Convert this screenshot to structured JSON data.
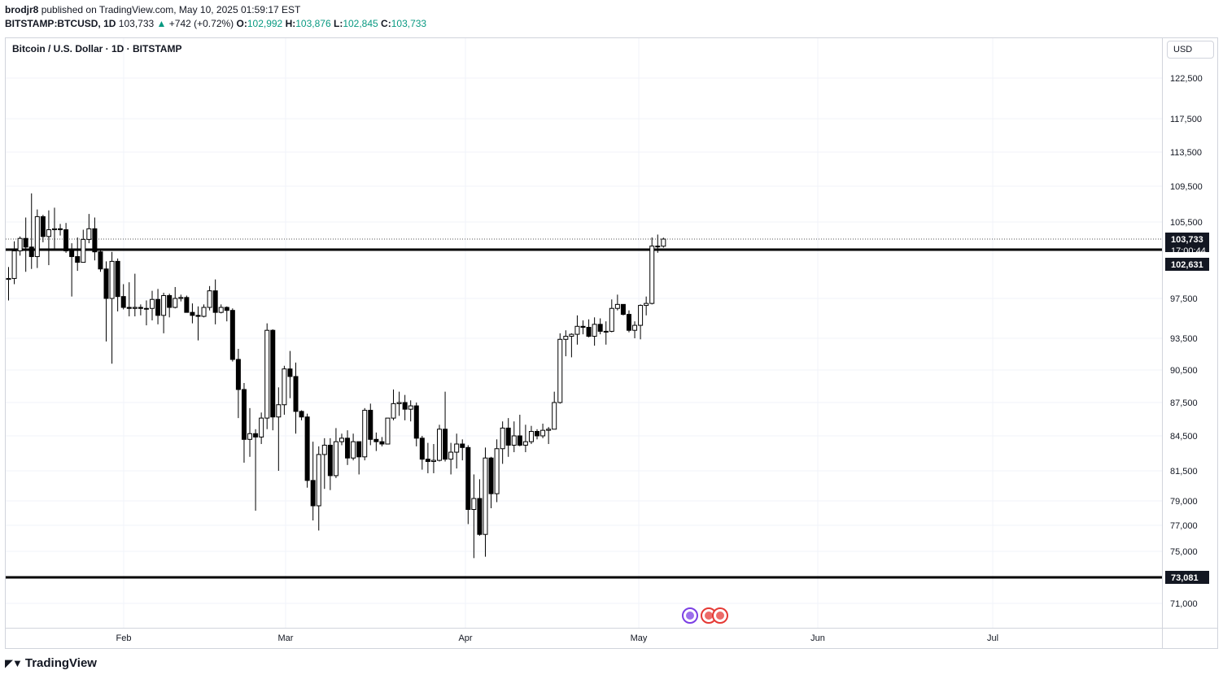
{
  "header": {
    "user": "brodjr8",
    "published_text": "published on TradingView.com, May 10, 2025 01:59:17 EST"
  },
  "ticker": {
    "symbol": "BITSTAMP:BTCUSD, 1D",
    "last": "103,733",
    "change": "+742 (+0.72%)",
    "o_label": "O:",
    "o": "102,992",
    "h_label": "H:",
    "h": "103,876",
    "l_label": "L:",
    "l": "102,845",
    "c_label": "C:",
    "c": "103,733"
  },
  "chart_title": "Bitcoin / U.S. Dollar · 1D · BITSTAMP",
  "currency_button": "USD",
  "branding": {
    "logo_text": "TradingView",
    "logo_icon": "tradingview-logo-icon"
  },
  "colors": {
    "up_candle": "#ffffff",
    "down_candle": "#000000",
    "accent_up": "#089981",
    "label_bg": "#131722"
  },
  "chart_data": {
    "type": "candlestick",
    "title": "Bitcoin / U.S. Dollar · 1D · BITSTAMP",
    "y_axis": {
      "ticks": [
        71000,
        73081,
        75000,
        77000,
        79000,
        81500,
        84500,
        87500,
        90500,
        93500,
        97500,
        102631,
        103733,
        105500,
        109500,
        113500,
        117500,
        122500
      ],
      "tick_labels": [
        "71,000",
        "75,000",
        "77,000",
        "79,000",
        "81,500",
        "84,500",
        "87,500",
        "90,500",
        "93,500",
        "97,500",
        "105,500",
        "109,500",
        "113,500",
        "117,500",
        "122,500"
      ]
    },
    "x_axis": {
      "tick_labels": [
        "Feb",
        "Mar",
        "Apr",
        "May",
        "Jun",
        "Jul"
      ]
    },
    "horizontal_lines": [
      {
        "price": 102631,
        "label": "102,631"
      },
      {
        "price": 73081,
        "label": "73,081"
      }
    ],
    "last_price": {
      "price": 103733,
      "label": "103,733",
      "countdown": "17:00:44"
    },
    "candles": [
      {
        "date": "2025-01-16",
        "o": 99500,
        "h": 100800,
        "l": 97300,
        "c": 99600
      },
      {
        "date": "2025-01-17",
        "o": 99600,
        "h": 103500,
        "l": 99000,
        "c": 102500
      },
      {
        "date": "2025-01-18",
        "o": 102500,
        "h": 104000,
        "l": 102000,
        "c": 103800
      },
      {
        "date": "2025-01-19",
        "o": 103800,
        "h": 106000,
        "l": 100300,
        "c": 102900
      },
      {
        "date": "2025-01-20",
        "o": 102900,
        "h": 108700,
        "l": 100600,
        "c": 101900
      },
      {
        "date": "2025-01-21",
        "o": 101900,
        "h": 106900,
        "l": 100700,
        "c": 106100
      },
      {
        "date": "2025-01-22",
        "o": 106100,
        "h": 106300,
        "l": 103400,
        "c": 104000
      },
      {
        "date": "2025-01-23",
        "o": 104000,
        "h": 106800,
        "l": 101000,
        "c": 104700
      },
      {
        "date": "2025-01-24",
        "o": 104700,
        "h": 107100,
        "l": 102700,
        "c": 104800
      },
      {
        "date": "2025-01-25",
        "o": 104800,
        "h": 105300,
        "l": 104100,
        "c": 104700
      },
      {
        "date": "2025-01-26",
        "o": 104700,
        "h": 105400,
        "l": 102300,
        "c": 102500
      },
      {
        "date": "2025-01-27",
        "o": 102500,
        "h": 103300,
        "l": 97700,
        "c": 101900
      },
      {
        "date": "2025-01-28",
        "o": 101900,
        "h": 103900,
        "l": 100400,
        "c": 101300
      },
      {
        "date": "2025-01-29",
        "o": 101300,
        "h": 104700,
        "l": 101300,
        "c": 103700
      },
      {
        "date": "2025-01-30",
        "o": 103700,
        "h": 106400,
        "l": 103300,
        "c": 104800
      },
      {
        "date": "2025-01-31",
        "o": 104800,
        "h": 106000,
        "l": 101500,
        "c": 102400
      },
      {
        "date": "2025-02-01",
        "o": 102400,
        "h": 102700,
        "l": 100300,
        "c": 100600
      },
      {
        "date": "2025-02-02",
        "o": 100600,
        "h": 101400,
        "l": 93200,
        "c": 97500
      },
      {
        "date": "2025-02-03",
        "o": 97500,
        "h": 102400,
        "l": 91100,
        "c": 101400
      },
      {
        "date": "2025-02-04",
        "o": 101400,
        "h": 101700,
        "l": 96200,
        "c": 97700
      },
      {
        "date": "2025-02-05",
        "o": 97700,
        "h": 99000,
        "l": 96400,
        "c": 96600
      },
      {
        "date": "2025-02-06",
        "o": 96600,
        "h": 99200,
        "l": 95700,
        "c": 96500
      },
      {
        "date": "2025-02-07",
        "o": 96500,
        "h": 100100,
        "l": 95700,
        "c": 96600
      },
      {
        "date": "2025-02-08",
        "o": 96600,
        "h": 96900,
        "l": 95800,
        "c": 96500
      },
      {
        "date": "2025-02-09",
        "o": 96500,
        "h": 97300,
        "l": 94800,
        "c": 96500
      },
      {
        "date": "2025-02-10",
        "o": 96500,
        "h": 98300,
        "l": 95300,
        "c": 97400
      },
      {
        "date": "2025-02-11",
        "o": 97400,
        "h": 98500,
        "l": 94900,
        "c": 95800
      },
      {
        "date": "2025-02-12",
        "o": 95800,
        "h": 98100,
        "l": 94000,
        "c": 97800
      },
      {
        "date": "2025-02-13",
        "o": 97800,
        "h": 98000,
        "l": 95600,
        "c": 96600
      },
      {
        "date": "2025-02-14",
        "o": 96600,
        "h": 98700,
        "l": 96500,
        "c": 97500
      },
      {
        "date": "2025-02-15",
        "o": 97500,
        "h": 97900,
        "l": 97200,
        "c": 97600
      },
      {
        "date": "2025-02-16",
        "o": 97600,
        "h": 97800,
        "l": 96100,
        "c": 96100
      },
      {
        "date": "2025-02-17",
        "o": 96100,
        "h": 97000,
        "l": 95000,
        "c": 95800
      },
      {
        "date": "2025-02-18",
        "o": 95800,
        "h": 96700,
        "l": 93300,
        "c": 95700
      },
      {
        "date": "2025-02-19",
        "o": 95700,
        "h": 96900,
        "l": 95600,
        "c": 96600
      },
      {
        "date": "2025-02-20",
        "o": 96600,
        "h": 98800,
        "l": 96300,
        "c": 98300
      },
      {
        "date": "2025-02-21",
        "o": 98300,
        "h": 99500,
        "l": 94900,
        "c": 96100
      },
      {
        "date": "2025-02-22",
        "o": 96100,
        "h": 96900,
        "l": 96000,
        "c": 96600
      },
      {
        "date": "2025-02-23",
        "o": 96600,
        "h": 96700,
        "l": 95200,
        "c": 96300
      },
      {
        "date": "2025-02-24",
        "o": 96300,
        "h": 96500,
        "l": 91300,
        "c": 91500
      },
      {
        "date": "2025-02-25",
        "o": 91500,
        "h": 92500,
        "l": 86100,
        "c": 88700
      },
      {
        "date": "2025-02-26",
        "o": 88700,
        "h": 89300,
        "l": 82200,
        "c": 84200
      },
      {
        "date": "2025-02-27",
        "o": 84200,
        "h": 87000,
        "l": 82700,
        "c": 84700
      },
      {
        "date": "2025-02-28",
        "o": 84700,
        "h": 85100,
        "l": 78200,
        "c": 84400
      },
      {
        "date": "2025-03-01",
        "o": 84400,
        "h": 86600,
        "l": 83800,
        "c": 86100
      },
      {
        "date": "2025-03-02",
        "o": 86100,
        "h": 95000,
        "l": 85100,
        "c": 94300
      },
      {
        "date": "2025-03-03",
        "o": 94300,
        "h": 94400,
        "l": 85000,
        "c": 86200
      },
      {
        "date": "2025-03-04",
        "o": 86200,
        "h": 88900,
        "l": 81500,
        "c": 87300
      },
      {
        "date": "2025-03-05",
        "o": 87300,
        "h": 90900,
        "l": 86400,
        "c": 90600
      },
      {
        "date": "2025-03-06",
        "o": 90600,
        "h": 92300,
        "l": 87900,
        "c": 89900
      },
      {
        "date": "2025-03-07",
        "o": 89900,
        "h": 91200,
        "l": 84700,
        "c": 86700
      },
      {
        "date": "2025-03-08",
        "o": 86700,
        "h": 86800,
        "l": 85900,
        "c": 86200
      },
      {
        "date": "2025-03-09",
        "o": 86200,
        "h": 86500,
        "l": 80100,
        "c": 80700
      },
      {
        "date": "2025-03-10",
        "o": 80700,
        "h": 84000,
        "l": 77400,
        "c": 78600
      },
      {
        "date": "2025-03-11",
        "o": 78600,
        "h": 83600,
        "l": 76600,
        "c": 82900
      },
      {
        "date": "2025-03-12",
        "o": 82900,
        "h": 84300,
        "l": 80000,
        "c": 83700
      },
      {
        "date": "2025-03-13",
        "o": 83700,
        "h": 84300,
        "l": 79900,
        "c": 81100
      },
      {
        "date": "2025-03-14",
        "o": 81100,
        "h": 85200,
        "l": 80900,
        "c": 84000
      },
      {
        "date": "2025-03-15",
        "o": 84000,
        "h": 84700,
        "l": 83700,
        "c": 84300
      },
      {
        "date": "2025-03-16",
        "o": 84300,
        "h": 85000,
        "l": 82000,
        "c": 82600
      },
      {
        "date": "2025-03-17",
        "o": 82600,
        "h": 84700,
        "l": 82400,
        "c": 84000
      },
      {
        "date": "2025-03-18",
        "o": 84000,
        "h": 84000,
        "l": 81200,
        "c": 82700
      },
      {
        "date": "2025-03-19",
        "o": 82700,
        "h": 87000,
        "l": 82400,
        "c": 86800
      },
      {
        "date": "2025-03-20",
        "o": 86800,
        "h": 87400,
        "l": 83700,
        "c": 84200
      },
      {
        "date": "2025-03-21",
        "o": 84200,
        "h": 84800,
        "l": 83200,
        "c": 84000
      },
      {
        "date": "2025-03-22",
        "o": 84000,
        "h": 84400,
        "l": 83600,
        "c": 83800
      },
      {
        "date": "2025-03-23",
        "o": 83800,
        "h": 86100,
        "l": 83800,
        "c": 86100
      },
      {
        "date": "2025-03-24",
        "o": 86100,
        "h": 88700,
        "l": 85900,
        "c": 87400
      },
      {
        "date": "2025-03-25",
        "o": 87400,
        "h": 88500,
        "l": 86300,
        "c": 87500
      },
      {
        "date": "2025-03-26",
        "o": 87500,
        "h": 88200,
        "l": 85900,
        "c": 86900
      },
      {
        "date": "2025-03-27",
        "o": 86900,
        "h": 87700,
        "l": 85800,
        "c": 87200
      },
      {
        "date": "2025-03-28",
        "o": 87200,
        "h": 87500,
        "l": 83600,
        "c": 84300
      },
      {
        "date": "2025-03-29",
        "o": 84300,
        "h": 84500,
        "l": 81600,
        "c": 82500
      },
      {
        "date": "2025-03-30",
        "o": 82500,
        "h": 83900,
        "l": 81300,
        "c": 82300
      },
      {
        "date": "2025-03-31",
        "o": 82300,
        "h": 83800,
        "l": 81300,
        "c": 82400
      },
      {
        "date": "2025-04-01",
        "o": 82400,
        "h": 85500,
        "l": 82300,
        "c": 85100
      },
      {
        "date": "2025-04-02",
        "o": 85100,
        "h": 88500,
        "l": 82300,
        "c": 82500
      },
      {
        "date": "2025-04-03",
        "o": 82500,
        "h": 83900,
        "l": 81200,
        "c": 83100
      },
      {
        "date": "2025-04-04",
        "o": 83100,
        "h": 84700,
        "l": 81700,
        "c": 83800
      },
      {
        "date": "2025-04-05",
        "o": 83800,
        "h": 84200,
        "l": 82400,
        "c": 83500
      },
      {
        "date": "2025-04-06",
        "o": 83500,
        "h": 83700,
        "l": 77100,
        "c": 78300
      },
      {
        "date": "2025-04-07",
        "o": 78300,
        "h": 81200,
        "l": 74500,
        "c": 79200
      },
      {
        "date": "2025-04-08",
        "o": 79200,
        "h": 80800,
        "l": 76200,
        "c": 76300
      },
      {
        "date": "2025-04-09",
        "o": 76300,
        "h": 83500,
        "l": 74600,
        "c": 82600
      },
      {
        "date": "2025-04-10",
        "o": 82600,
        "h": 82700,
        "l": 78400,
        "c": 79600
      },
      {
        "date": "2025-04-11",
        "o": 79600,
        "h": 84200,
        "l": 78900,
        "c": 83400
      },
      {
        "date": "2025-04-12",
        "o": 83400,
        "h": 85800,
        "l": 82100,
        "c": 85200
      },
      {
        "date": "2025-04-13",
        "o": 85200,
        "h": 86100,
        "l": 82700,
        "c": 83700
      },
      {
        "date": "2025-04-14",
        "o": 83700,
        "h": 85800,
        "l": 83100,
        "c": 84500
      },
      {
        "date": "2025-04-15",
        "o": 84500,
        "h": 86400,
        "l": 83600,
        "c": 83700
      },
      {
        "date": "2025-04-16",
        "o": 83700,
        "h": 85500,
        "l": 83100,
        "c": 84000
      },
      {
        "date": "2025-04-17",
        "o": 84000,
        "h": 85400,
        "l": 83800,
        "c": 84900
      },
      {
        "date": "2025-04-18",
        "o": 84900,
        "h": 85100,
        "l": 84200,
        "c": 84500
      },
      {
        "date": "2025-04-19",
        "o": 84500,
        "h": 85600,
        "l": 84300,
        "c": 85000
      },
      {
        "date": "2025-04-20",
        "o": 85000,
        "h": 85300,
        "l": 83800,
        "c": 85100
      },
      {
        "date": "2025-04-21",
        "o": 85100,
        "h": 88500,
        "l": 85100,
        "c": 87500
      },
      {
        "date": "2025-04-22",
        "o": 87500,
        "h": 94000,
        "l": 87400,
        "c": 93400
      },
      {
        "date": "2025-04-23",
        "o": 93400,
        "h": 94300,
        "l": 91800,
        "c": 93700
      },
      {
        "date": "2025-04-24",
        "o": 93700,
        "h": 94000,
        "l": 91700,
        "c": 93900
      },
      {
        "date": "2025-04-25",
        "o": 93900,
        "h": 95800,
        "l": 92900,
        "c": 94700
      },
      {
        "date": "2025-04-26",
        "o": 94700,
        "h": 95300,
        "l": 93900,
        "c": 94600
      },
      {
        "date": "2025-04-27",
        "o": 94600,
        "h": 95400,
        "l": 93600,
        "c": 93700
      },
      {
        "date": "2025-04-28",
        "o": 93700,
        "h": 95600,
        "l": 92800,
        "c": 94900
      },
      {
        "date": "2025-04-29",
        "o": 94900,
        "h": 95500,
        "l": 93900,
        "c": 94200
      },
      {
        "date": "2025-04-30",
        "o": 94200,
        "h": 95200,
        "l": 92900,
        "c": 94200
      },
      {
        "date": "2025-05-01",
        "o": 94200,
        "h": 97400,
        "l": 94100,
        "c": 96500
      },
      {
        "date": "2025-05-02",
        "o": 96500,
        "h": 97900,
        "l": 96300,
        "c": 96900
      },
      {
        "date": "2025-05-03",
        "o": 96900,
        "h": 96900,
        "l": 95800,
        "c": 95900
      },
      {
        "date": "2025-05-04",
        "o": 95900,
        "h": 96300,
        "l": 94100,
        "c": 94300
      },
      {
        "date": "2025-05-05",
        "o": 94300,
        "h": 95200,
        "l": 93500,
        "c": 94800
      },
      {
        "date": "2025-05-06",
        "o": 94800,
        "h": 96900,
        "l": 93400,
        "c": 96800
      },
      {
        "date": "2025-05-07",
        "o": 96800,
        "h": 97700,
        "l": 95800,
        "c": 97000
      },
      {
        "date": "2025-05-08",
        "o": 97000,
        "h": 103900,
        "l": 96900,
        "c": 103000
      },
      {
        "date": "2025-05-09",
        "o": 103000,
        "h": 104200,
        "l": 102300,
        "c": 102992
      },
      {
        "date": "2025-05-10",
        "o": 102992,
        "h": 103876,
        "l": 102845,
        "c": 103733
      }
    ]
  }
}
